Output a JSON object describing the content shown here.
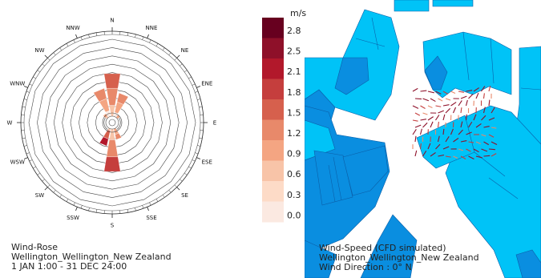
{
  "wind_rose": {
    "directions": [
      "N",
      "NNE",
      "NE",
      "ENE",
      "E",
      "ESE",
      "SE",
      "SSE",
      "S",
      "SSW",
      "SW",
      "WSW",
      "W",
      "WNW",
      "NW",
      "NNW"
    ],
    "caption": {
      "line1": "Wind-Rose",
      "line2": "Wellington_Wellington_New Zealand",
      "line3": "1 JAN 1:00 - 31 DEC 24:00"
    }
  },
  "legend": {
    "unit": "m/s",
    "labels": [
      "2.8",
      "2.5",
      "2.1",
      "1.8",
      "1.5",
      "1.2",
      "0.9",
      "0.6",
      "0.3",
      "0.0"
    ],
    "colors": [
      "#67001f",
      "#8e1029",
      "#b2182b",
      "#c53e3d",
      "#d6604d",
      "#e8896a",
      "#f4a582",
      "#f8c4a8",
      "#fddbc7",
      "#fbe9e1"
    ]
  },
  "map": {
    "caption": {
      "line1": "Wind-Speed (CFD simulated)",
      "line2": "Wellington_Wellington_New Zealand",
      "line3": "Wind Direction : 0° N"
    },
    "colors": {
      "building_light": "#00c3f7",
      "building_dark": "#0a8ee0",
      "edge": "#0b5fa8"
    }
  }
}
